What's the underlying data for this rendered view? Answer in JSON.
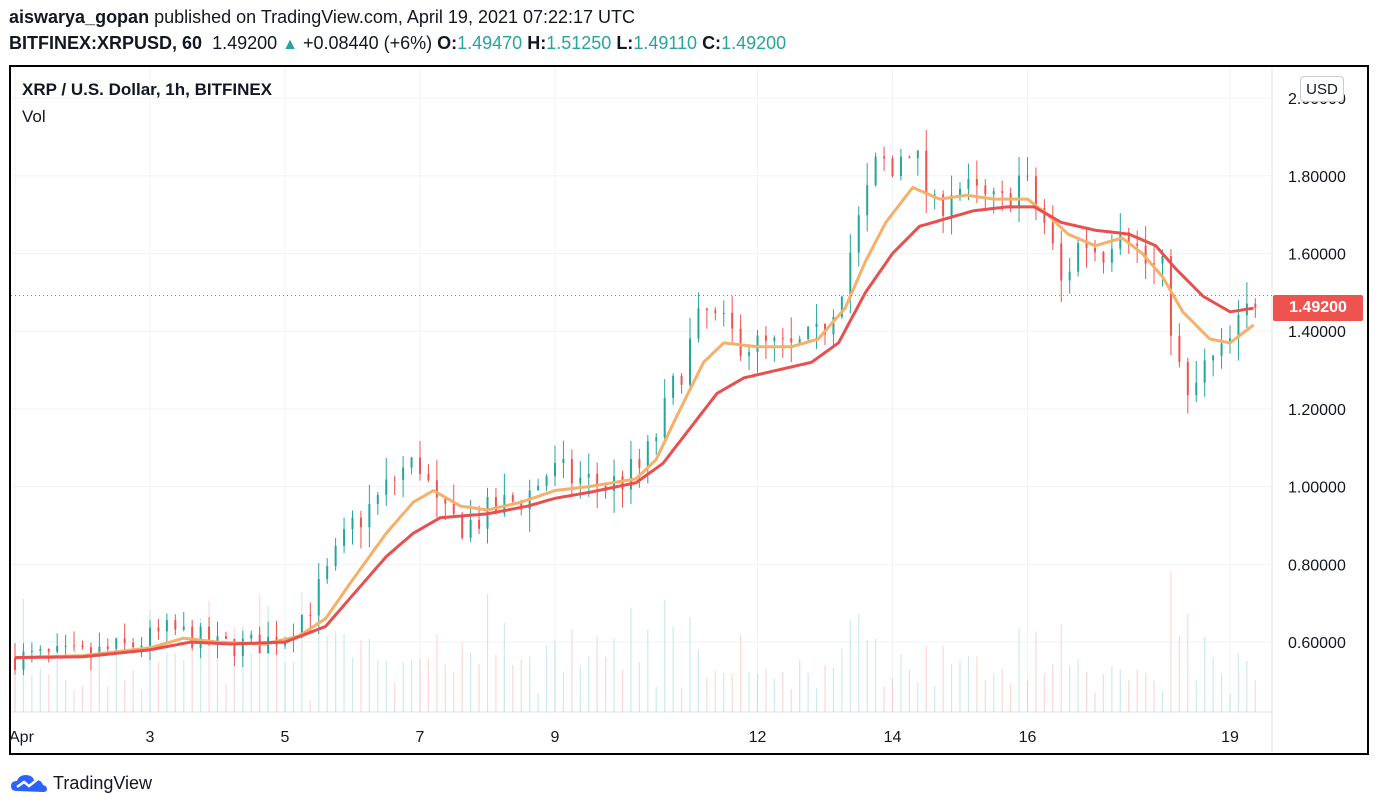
{
  "header": {
    "author": "aiswarya_gopan",
    "published": "published on TradingView.com, April 19, 2021 07:22:17 UTC",
    "symbol": "BITFINEX:XRPUSD, 60",
    "last": "1.49200",
    "change": "+0.08440 (+6%)",
    "o_label": "O:",
    "o": "1.49470",
    "h_label": "H:",
    "h": "1.51250",
    "l_label": "L:",
    "l": "1.49110",
    "c_label": "C:",
    "c": "1.49200"
  },
  "legend": {
    "title": "XRP / U.S. Dollar, 1h, BITFINEX",
    "volume": "Vol"
  },
  "currency_badge": "USD",
  "price_tag": "1.49200",
  "footer": {
    "brand": "TradingView",
    "icon": "tradingview-cloud-icon"
  },
  "colors": {
    "up": "#26a69a",
    "down": "#ef5350",
    "ma_fast": "#f5b06a",
    "ma_slow": "#e84f4f",
    "grid": "#f0f3fa",
    "price_line": "#ef5350"
  },
  "chart_data": {
    "type": "candlestick",
    "interval": "1h",
    "ylim": [
      0.42,
      2.08
    ],
    "y_ticks": [
      "2.00000",
      "1.80000",
      "1.60000",
      "1.40000",
      "1.20000",
      "1.00000",
      "0.80000",
      "0.60000"
    ],
    "y_tick_values": [
      2.0,
      1.8,
      1.6,
      1.4,
      1.2,
      1.0,
      0.8,
      0.6
    ],
    "x_ticks": [
      "Apr",
      "3",
      "5",
      "7",
      "9",
      "12",
      "14",
      "16",
      "19"
    ],
    "x_tick_days": [
      1,
      3,
      5,
      7,
      9,
      12,
      14,
      16,
      19
    ],
    "day_range": [
      1,
      19.38
    ],
    "current_price": 1.492,
    "price_path": [
      [
        1.0,
        0.56
      ],
      [
        2.0,
        0.565
      ],
      [
        2.7,
        0.59
      ],
      [
        3.0,
        0.61
      ],
      [
        3.3,
        0.63
      ],
      [
        3.7,
        0.61
      ],
      [
        4.0,
        0.59
      ],
      [
        4.6,
        0.595
      ],
      [
        5.0,
        0.62
      ],
      [
        5.4,
        0.7
      ],
      [
        5.7,
        0.8
      ],
      [
        6.0,
        0.9
      ],
      [
        6.4,
        0.97
      ],
      [
        6.7,
        1.04
      ],
      [
        7.0,
        1.06
      ],
      [
        7.3,
        0.92
      ],
      [
        7.7,
        0.9
      ],
      [
        8.0,
        0.93
      ],
      [
        8.6,
        0.98
      ],
      [
        8.9,
        1.04
      ],
      [
        9.3,
        1.02
      ],
      [
        9.8,
        1.0
      ],
      [
        10.3,
        1.05
      ],
      [
        10.6,
        1.18
      ],
      [
        10.9,
        1.32
      ],
      [
        11.2,
        1.45
      ],
      [
        11.6,
        1.39
      ],
      [
        12.0,
        1.36
      ],
      [
        12.5,
        1.35
      ],
      [
        12.9,
        1.38
      ],
      [
        13.2,
        1.5
      ],
      [
        13.5,
        1.68
      ],
      [
        13.8,
        1.85
      ],
      [
        14.0,
        1.8
      ],
      [
        14.2,
        1.9
      ],
      [
        14.4,
        1.82
      ],
      [
        14.6,
        1.7
      ],
      [
        14.9,
        1.78
      ],
      [
        15.3,
        1.74
      ],
      [
        15.6,
        1.72
      ],
      [
        15.9,
        1.8
      ],
      [
        16.3,
        1.66
      ],
      [
        16.5,
        1.52
      ],
      [
        16.8,
        1.64
      ],
      [
        17.1,
        1.6
      ],
      [
        17.4,
        1.7
      ],
      [
        17.7,
        1.58
      ],
      [
        18.0,
        1.55
      ],
      [
        18.25,
        1.3
      ],
      [
        18.35,
        1.2
      ],
      [
        18.6,
        1.3
      ],
      [
        18.9,
        1.34
      ],
      [
        19.1,
        1.4
      ],
      [
        19.38,
        1.49
      ]
    ],
    "ma_fast_path": [
      [
        1.0,
        0.56
      ],
      [
        2.0,
        0.565
      ],
      [
        3.0,
        0.585
      ],
      [
        3.5,
        0.61
      ],
      [
        4.0,
        0.6
      ],
      [
        4.7,
        0.595
      ],
      [
        5.2,
        0.615
      ],
      [
        5.6,
        0.66
      ],
      [
        6.0,
        0.76
      ],
      [
        6.5,
        0.88
      ],
      [
        6.9,
        0.96
      ],
      [
        7.2,
        0.99
      ],
      [
        7.6,
        0.95
      ],
      [
        8.0,
        0.94
      ],
      [
        8.5,
        0.96
      ],
      [
        9.0,
        0.99
      ],
      [
        9.5,
        1.0
      ],
      [
        10.2,
        1.02
      ],
      [
        10.5,
        1.07
      ],
      [
        10.8,
        1.18
      ],
      [
        11.2,
        1.32
      ],
      [
        11.5,
        1.37
      ],
      [
        12.0,
        1.36
      ],
      [
        12.5,
        1.36
      ],
      [
        12.9,
        1.38
      ],
      [
        13.3,
        1.46
      ],
      [
        13.6,
        1.58
      ],
      [
        13.9,
        1.68
      ],
      [
        14.3,
        1.77
      ],
      [
        14.7,
        1.74
      ],
      [
        15.1,
        1.75
      ],
      [
        15.5,
        1.74
      ],
      [
        16.0,
        1.74
      ],
      [
        16.3,
        1.7
      ],
      [
        16.6,
        1.65
      ],
      [
        17.0,
        1.62
      ],
      [
        17.4,
        1.64
      ],
      [
        17.7,
        1.6
      ],
      [
        18.0,
        1.54
      ],
      [
        18.3,
        1.45
      ],
      [
        18.7,
        1.38
      ],
      [
        19.0,
        1.37
      ],
      [
        19.38,
        1.42
      ]
    ],
    "ma_slow_path": [
      [
        1.0,
        0.56
      ],
      [
        2.0,
        0.562
      ],
      [
        3.0,
        0.58
      ],
      [
        3.6,
        0.6
      ],
      [
        4.2,
        0.595
      ],
      [
        5.0,
        0.6
      ],
      [
        5.6,
        0.64
      ],
      [
        6.0,
        0.72
      ],
      [
        6.5,
        0.82
      ],
      [
        6.9,
        0.88
      ],
      [
        7.3,
        0.92
      ],
      [
        8.0,
        0.93
      ],
      [
        8.6,
        0.95
      ],
      [
        9.0,
        0.97
      ],
      [
        9.5,
        0.985
      ],
      [
        10.2,
        1.01
      ],
      [
        10.6,
        1.06
      ],
      [
        11.0,
        1.15
      ],
      [
        11.4,
        1.24
      ],
      [
        11.8,
        1.28
      ],
      [
        12.3,
        1.3
      ],
      [
        12.8,
        1.32
      ],
      [
        13.2,
        1.37
      ],
      [
        13.6,
        1.5
      ],
      [
        14.0,
        1.6
      ],
      [
        14.4,
        1.67
      ],
      [
        14.8,
        1.69
      ],
      [
        15.2,
        1.71
      ],
      [
        15.7,
        1.72
      ],
      [
        16.1,
        1.72
      ],
      [
        16.5,
        1.68
      ],
      [
        17.0,
        1.66
      ],
      [
        17.5,
        1.65
      ],
      [
        17.9,
        1.62
      ],
      [
        18.2,
        1.56
      ],
      [
        18.6,
        1.49
      ],
      [
        19.0,
        1.45
      ],
      [
        19.38,
        1.46
      ]
    ]
  }
}
